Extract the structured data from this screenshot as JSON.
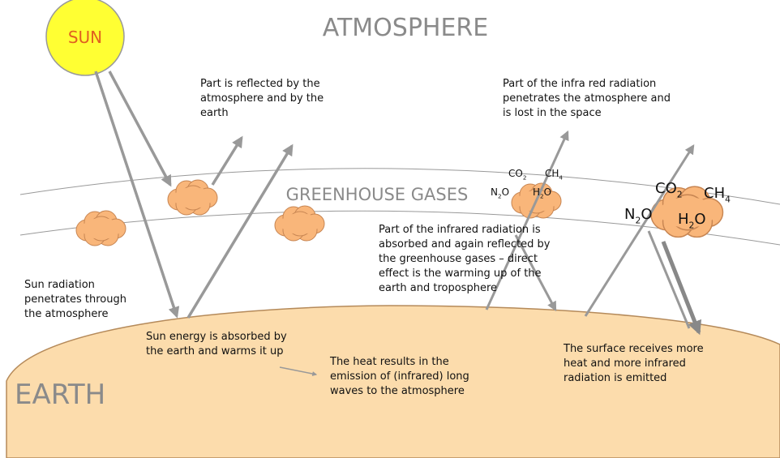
{
  "title": "ATMOSPHERE",
  "band_label": "GREENHOUSE GASES",
  "earth_label": "EARTH",
  "sun_label": "SUN",
  "notes": [
    {
      "lines": [
        "Part is reflected by the",
        "atmosphere and by the",
        "earth"
      ]
    },
    {
      "lines": [
        "Part of the infra red radiation",
        "penetrates the atmosphere and",
        "is lost in the space"
      ]
    },
    {
      "lines": [
        "Part of the infrared radiation is",
        "absorbed and again reflected by",
        "the greenhouse gases – direct",
        "effect is the warming up of the",
        "earth and troposphere"
      ]
    },
    {
      "lines": [
        "Sun radiation",
        "penetrates through",
        "the atmosphere"
      ]
    },
    {
      "lines": [
        "Sun energy is absorbed by",
        "the earth and warms it up"
      ]
    },
    {
      "lines": [
        "The heat results in the",
        "emission of (infrared) long",
        "waves to the atmosphere"
      ]
    },
    {
      "lines": [
        "The surface receives more",
        "heat and more infrared",
        "radiation is emitted"
      ]
    }
  ],
  "gases": [
    {
      "parts": [
        "CO",
        "2"
      ]
    },
    {
      "parts": [
        "CH",
        "4"
      ]
    },
    {
      "parts": [
        "N",
        "2",
        "O"
      ]
    },
    {
      "parts": [
        "H",
        "2",
        "O"
      ]
    },
    {
      "parts": [
        "CO",
        "2"
      ]
    },
    {
      "parts": [
        "CH",
        "4"
      ]
    },
    {
      "parts": [
        "N",
        "2",
        "O"
      ]
    },
    {
      "parts": [
        "H",
        "2",
        "O"
      ]
    }
  ]
}
